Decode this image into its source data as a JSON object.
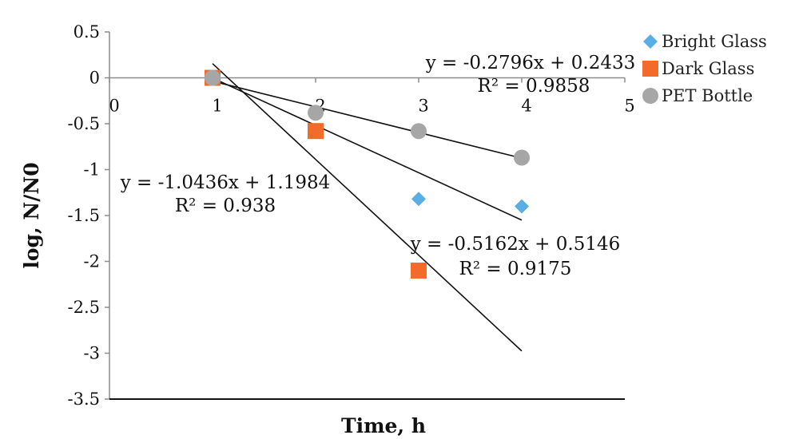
{
  "chart_data": {
    "type": "scatter",
    "xlabel": "Time, h",
    "ylabel": "log, N/N0",
    "xlim": [
      0,
      5
    ],
    "ylim": [
      -3.5,
      0.5
    ],
    "x_ticks": [
      "0",
      "1",
      "2",
      "3",
      "4",
      "5"
    ],
    "y_ticks": [
      "0.5",
      "0",
      "-0.5",
      "-1",
      "-1.5",
      "-2",
      "-2.5",
      "-3",
      "-3.5"
    ],
    "legend_position": "top-right",
    "series": [
      {
        "name": "Bright Glass",
        "marker": "diamond",
        "color": "#5aaee6",
        "points": [
          [
            1,
            0
          ],
          [
            2,
            -0.58
          ],
          [
            3,
            -1.32
          ],
          [
            4,
            -1.4
          ]
        ],
        "trendline": {
          "slope": -0.5162,
          "intercept": 0.5146,
          "x_range": [
            1,
            4
          ]
        },
        "equation": "y = -0.5162x + 0.5146",
        "r2": "R² = 0.9175"
      },
      {
        "name": "Dark Glass",
        "marker": "square",
        "color": "#f26b2a",
        "points": [
          [
            1,
            0
          ],
          [
            2,
            -0.58
          ],
          [
            3,
            -2.1
          ]
        ],
        "trendline": {
          "slope": -1.0436,
          "intercept": 1.1984,
          "x_range": [
            1,
            4
          ]
        },
        "equation": "y = -1.0436x + 1.1984",
        "r2": "R² = 0.938"
      },
      {
        "name": "PET Bottle",
        "marker": "circle",
        "color": "#a6a6a6",
        "points": [
          [
            1,
            0
          ],
          [
            2,
            -0.38
          ],
          [
            3,
            -0.58
          ],
          [
            4,
            -0.87
          ]
        ],
        "trendline": {
          "slope": -0.2796,
          "intercept": 0.2433,
          "x_range": [
            1,
            4
          ]
        },
        "equation": "y = -0.2796x + 0.2433",
        "r2": "R² = 0.9858"
      }
    ],
    "series_labels": {
      "Bright Glass": {
        "equation": "y = -0.5162x + 0.5146",
        "r2": "R² = 0.9175"
      },
      "Dark Glass": {
        "equation": "y = -1.0436x + 1.1984",
        "r2": "R² = 0.938"
      },
      "PET Bottle": {
        "equation": "y = -0.2796x + 0.2433",
        "r2": "R² = 0.9858"
      }
    }
  }
}
